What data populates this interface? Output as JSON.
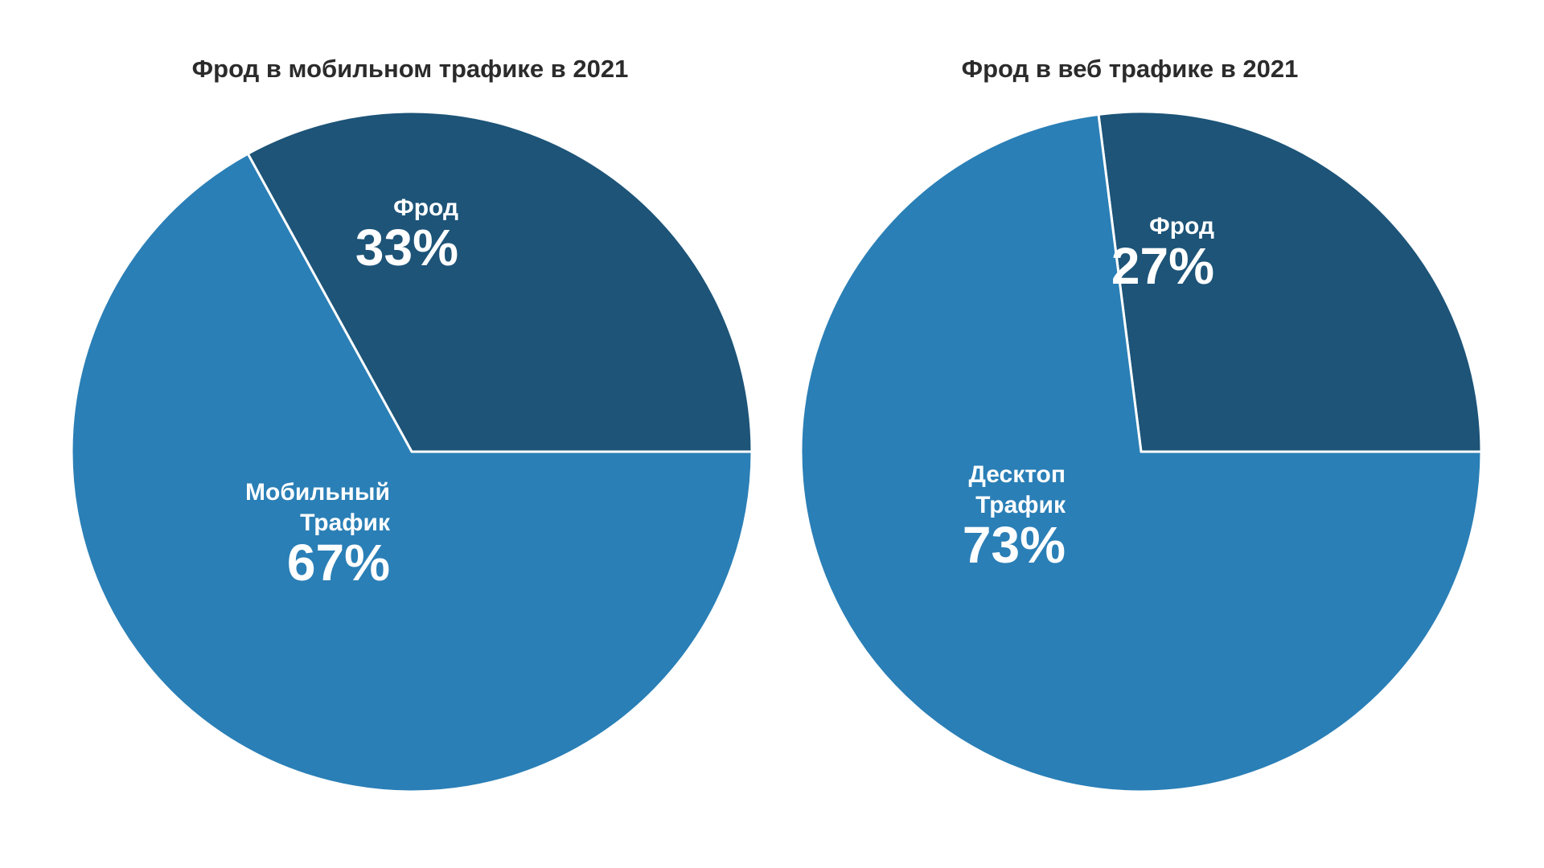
{
  "colors": {
    "background": "#ffffff",
    "title_text": "#2b2b2b",
    "slice_dark": "#1d5478",
    "slice_light": "#2a7fb6",
    "slice_border": "#ffffff",
    "label_text": "#ffffff"
  },
  "chart_data": [
    {
      "type": "pie",
      "title": "Фрод в мобильном трафике в 2021",
      "slices": [
        {
          "name": "Фрод",
          "name_lines": [
            "Фрод"
          ],
          "value": 33,
          "display": "33%",
          "color": "#1d5478"
        },
        {
          "name": "Мобильный Трафик",
          "name_lines": [
            "Мобильный",
            "Трафик"
          ],
          "value": 67,
          "display": "67%",
          "color": "#2a7fb6"
        }
      ]
    },
    {
      "type": "pie",
      "title": "Фрод в веб трафике в 2021",
      "slices": [
        {
          "name": "Фрод",
          "name_lines": [
            "Фрод"
          ],
          "value": 27,
          "display": "27%",
          "color": "#1d5478"
        },
        {
          "name": "Десктоп Трафик",
          "name_lines": [
            "Десктоп",
            "Трафик"
          ],
          "value": 73,
          "display": "73%",
          "color": "#2a7fb6"
        }
      ]
    }
  ]
}
